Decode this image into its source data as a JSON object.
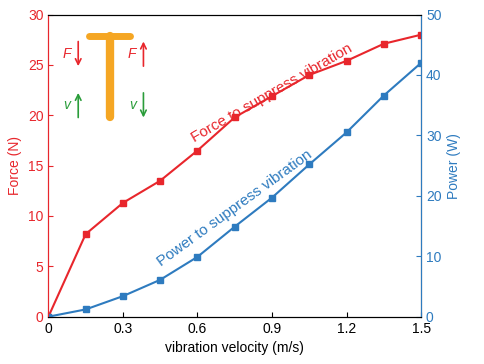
{
  "chart_data": {
    "type": "line",
    "x_label": "vibration velocity (m/s)",
    "y_label": "Force (N)",
    "y2_label": "Power (W)",
    "x": [
      0,
      0.15,
      0.3,
      0.45,
      0.6,
      0.75,
      0.9,
      1.05,
      1.2,
      1.35,
      1.5
    ],
    "xlim": [
      0,
      1.5
    ],
    "xticks": [
      0,
      0.3,
      0.6,
      0.9,
      1.2,
      1.5
    ],
    "ylim": [
      0,
      30
    ],
    "yticks": [
      0,
      5,
      10,
      15,
      20,
      25,
      30
    ],
    "y2lim": [
      0,
      50
    ],
    "y2ticks": [
      0,
      10,
      20,
      30,
      40,
      50
    ],
    "grid": false,
    "series": [
      {
        "name": "Force to suppress vibration",
        "color": "#e8262c",
        "marker": "square",
        "line_style": "solid",
        "values": [
          0,
          8.2,
          11.3,
          13.5,
          16.5,
          19.8,
          21.9,
          24.0,
          25.4,
          27.1,
          28.0
        ]
      },
      {
        "name": "Power to suppress vibration",
        "color": "#2e7bbf",
        "marker": "square",
        "line_style": "solid",
        "axis": "y2",
        "values": [
          0,
          1.2,
          3.4,
          6.1,
          9.9,
          14.9,
          19.7,
          25.2,
          30.5,
          36.6,
          42.0
        ]
      }
    ],
    "annotations": [
      "F",
      "F",
      "v",
      "v"
    ]
  }
}
